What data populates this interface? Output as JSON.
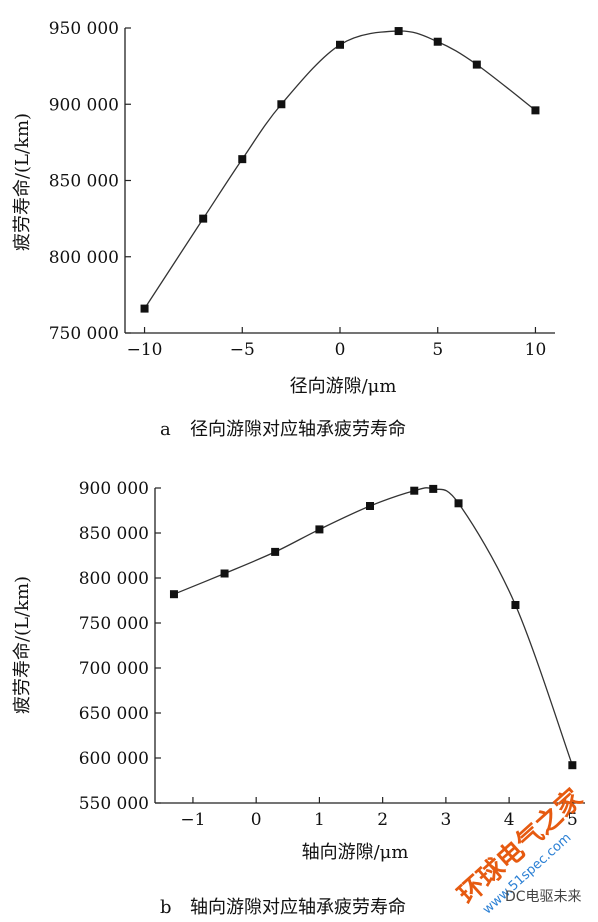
{
  "chart_data": [
    {
      "type": "line",
      "x": [
        -10,
        -7,
        -5,
        -3,
        0,
        3,
        5,
        7,
        10
      ],
      "y": [
        766000,
        825000,
        864000,
        900000,
        939000,
        948000,
        941000,
        926000,
        896000
      ],
      "xlabel": "径向游隙/μm",
      "ylabel": "疲劳寿命/(L/km)",
      "xlim": [
        -11,
        11
      ],
      "ylim": [
        750000,
        950000
      ],
      "xticks": [
        -10,
        -5,
        0,
        5,
        10
      ],
      "xtick_labels": [
        "−10",
        "−5",
        "0",
        "5",
        "10"
      ],
      "yticks": [
        750000,
        800000,
        850000,
        900000,
        950000
      ],
      "ytick_labels": [
        "750 000",
        "800 000",
        "850 000",
        "900 000",
        "950 000"
      ],
      "caption_letter": "a",
      "caption": "径向游隙对应轴承疲劳寿命",
      "grid": false,
      "marker": "square"
    },
    {
      "type": "line",
      "x": [
        -1.3,
        -0.5,
        0.3,
        1.0,
        1.8,
        2.5,
        2.8,
        3.2,
        4.1,
        5.0
      ],
      "y": [
        782000,
        805000,
        829000,
        854000,
        880000,
        897000,
        899000,
        883000,
        770000,
        592000
      ],
      "xlabel": "轴向游隙/μm",
      "ylabel": "疲劳寿命/(L/km)",
      "xlim": [
        -1.6,
        5.2
      ],
      "ylim": [
        550000,
        900000
      ],
      "xticks": [
        -1,
        0,
        1,
        2,
        3,
        4,
        5
      ],
      "xtick_labels": [
        "−1",
        "0",
        "1",
        "2",
        "3",
        "4",
        "5"
      ],
      "yticks": [
        550000,
        600000,
        650000,
        700000,
        750000,
        800000,
        850000,
        900000
      ],
      "ytick_labels": [
        "550 000",
        "600 000",
        "650 000",
        "700 000",
        "750 000",
        "800 000",
        "850 000",
        "900 000"
      ],
      "caption_letter": "b",
      "caption": "轴向游隙对应轴承疲劳寿命",
      "grid": false,
      "marker": "square"
    }
  ],
  "watermark": {
    "main": "环球电气之家",
    "url": "www.51spec.com",
    "account": "DC电驱未来",
    "color": "#e65a10"
  }
}
